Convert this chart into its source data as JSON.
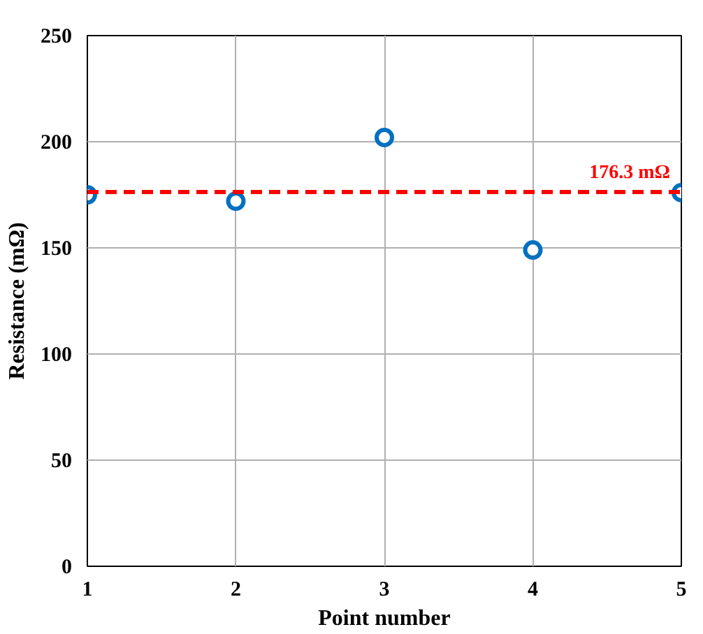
{
  "chart_data": {
    "type": "scatter",
    "xlabel": "Point number",
    "ylabel": "Resistance (mΩ)",
    "x": [
      1,
      2,
      3,
      4,
      5
    ],
    "series": [
      {
        "color": "#0070c0",
        "values": [
          175,
          172,
          202,
          149,
          176
        ]
      }
    ],
    "xlim": [
      1,
      5
    ],
    "xticks": [
      1,
      2,
      3,
      4,
      5
    ],
    "ylim": [
      0,
      250
    ],
    "yticks": [
      0,
      50,
      100,
      150,
      200,
      250
    ],
    "grid": true,
    "marker": "circle",
    "ref_lines": [
      {
        "axis": "y",
        "value": 176.3,
        "label": "176.3 mΩ",
        "color": "#ff0000",
        "line_style": "dashed"
      }
    ]
  }
}
